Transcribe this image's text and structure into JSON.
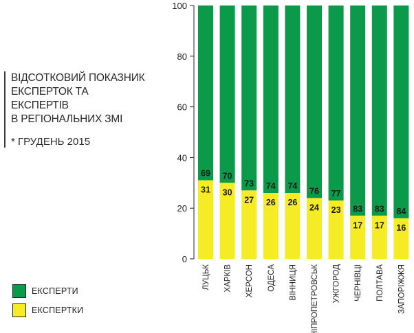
{
  "title_lines": [
    "ВІДСОТКОВИЙ ПОКАЗНИК",
    "ЕКСПЕРТОК ТА ЕКСПЕРТІВ",
    "В РЕГІОНАЛЬНИХ ЗМІ"
  ],
  "subtitle": "* ГРУДЕНЬ 2015",
  "legend": [
    {
      "label": "ЕКСПЕРТИ",
      "color": "#0a9a49"
    },
    {
      "label": "ЕКСПЕРТКИ",
      "color": "#f5ec25"
    }
  ],
  "colors": {
    "experts": "#0a9a49",
    "female_experts": "#f5ec25"
  },
  "chart_data": {
    "type": "bar",
    "stacked": true,
    "categories": [
      "ЛУЦЬК",
      "ХАРКІВ",
      "ХЕРСОН",
      "ОДЕСА",
      "ВІННИЦЯ",
      "ДНІПРОПЕТРОВСЬК",
      "УЖГОРОД",
      "ЧЕРНІВЦІ",
      "ПОЛТАВА",
      "ЗАПОРІЖЖЯ"
    ],
    "series": [
      {
        "name": "ЕКСПЕРТКИ",
        "values": [
          31,
          30,
          27,
          26,
          26,
          24,
          23,
          17,
          17,
          16
        ]
      },
      {
        "name": "ЕКСПЕРТИ",
        "values": [
          69,
          70,
          73,
          74,
          74,
          76,
          77,
          83,
          83,
          84
        ]
      }
    ],
    "ylim": [
      0,
      100
    ],
    "yticks": [
      0,
      20,
      40,
      60,
      80,
      100
    ],
    "grid": false,
    "legend_position": "bottom-left"
  }
}
